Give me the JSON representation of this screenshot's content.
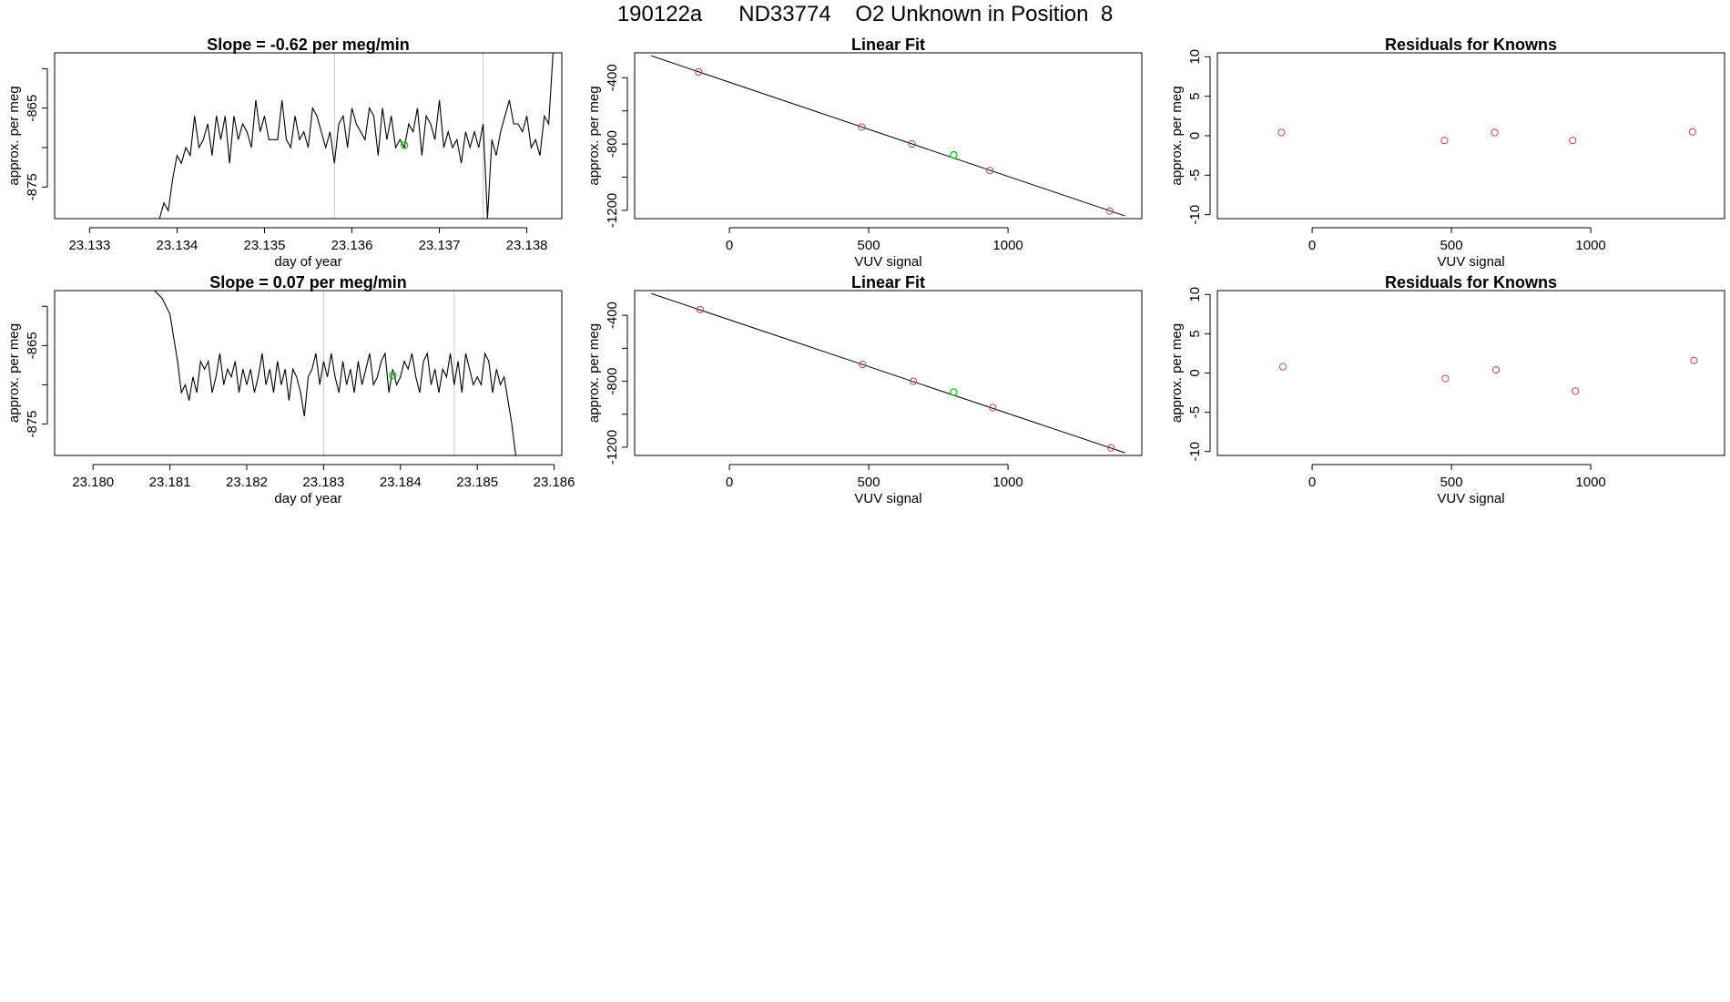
{
  "page": {
    "title": "190122a      ND33774    O2 Unknown in Position  8"
  },
  "chart_data": [
    {
      "type": "line",
      "title": "Slope =  -0.62  per meg/min",
      "xlabel": "day of year",
      "ylabel": "approx. per meg",
      "xlim": [
        23.1326,
        23.1384
      ],
      "ylim": [
        -879,
        -858
      ],
      "xticks": [
        {
          "v": 23.133,
          "label": "23.133"
        },
        {
          "v": 23.134,
          "label": "23.134"
        },
        {
          "v": 23.135,
          "label": "23.135"
        },
        {
          "v": 23.136,
          "label": "23.136"
        },
        {
          "v": 23.137,
          "label": "23.137"
        },
        {
          "v": 23.138,
          "label": "23.138"
        }
      ],
      "yticks": [
        {
          "v": -875,
          "label": "-875"
        },
        {
          "v": -865,
          "label": "-865"
        }
      ],
      "extra_yticks": [
        -860,
        -870
      ],
      "vlines": [
        23.1358,
        23.1375
      ],
      "highlight": {
        "x": 23.1366,
        "y": -869.7,
        "color": "#00cc00"
      },
      "series": [
        {
          "x": [
            23.1326,
            23.1338,
            23.13385,
            23.1339,
            23.13395,
            23.134,
            23.13405,
            23.1341,
            23.13415,
            23.1342,
            23.13425,
            23.1343,
            23.13435,
            23.1344,
            23.13445,
            23.1345,
            23.13455,
            23.1346,
            23.13465,
            23.1347,
            23.13475,
            23.1348,
            23.13485,
            23.1349,
            23.13495,
            23.135,
            23.13505,
            23.1351,
            23.13515,
            23.1352,
            23.13525,
            23.1353,
            23.13535,
            23.1354,
            23.13545,
            23.1355,
            23.13555,
            23.1356,
            23.13565,
            23.1357,
            23.13575,
            23.1358,
            23.13585,
            23.1359,
            23.13595,
            23.136,
            23.13605,
            23.1361,
            23.13615,
            23.1362,
            23.13625,
            23.1363,
            23.13635,
            23.1364,
            23.13645,
            23.1365,
            23.13655,
            23.1366,
            23.13665,
            23.1367,
            23.13675,
            23.1368,
            23.13685,
            23.1369,
            23.13695,
            23.137,
            23.13705,
            23.1371,
            23.13715,
            23.1372,
            23.13725,
            23.1373,
            23.13735,
            23.1374,
            23.13745,
            23.1375,
            23.13755,
            23.1376,
            23.13765,
            23.1377,
            23.13775,
            23.1378,
            23.13785,
            23.1379,
            23.13795,
            23.138,
            23.13805,
            23.1381,
            23.13815,
            23.1382,
            23.13825,
            23.1383,
            23.13835
          ],
          "y": [
            -879,
            -879,
            -877,
            -878,
            -874,
            -871,
            -872,
            -870,
            -871,
            -866,
            -870,
            -869,
            -867,
            -871,
            -866,
            -869,
            -866,
            -872,
            -866,
            -869,
            -867,
            -868,
            -870,
            -864,
            -868,
            -866,
            -869,
            -869,
            -869,
            -864,
            -869,
            -870,
            -866,
            -869,
            -868,
            -870,
            -865,
            -866,
            -868,
            -870,
            -868,
            -872,
            -867,
            -866,
            -870,
            -865,
            -867,
            -868,
            -869,
            -865,
            -866,
            -871,
            -865,
            -869,
            -866,
            -870,
            -869,
            -870,
            -867,
            -868,
            -865,
            -871,
            -866,
            -867,
            -869,
            -864,
            -870,
            -868,
            -870,
            -869,
            -872,
            -868,
            -870,
            -868,
            -870,
            -867,
            -879,
            -869,
            -871,
            -868,
            -866,
            -864,
            -867,
            -867,
            -868,
            -866,
            -870,
            -869,
            -871,
            -866,
            -867,
            -858,
            -855
          ]
        }
      ]
    },
    {
      "type": "scatter",
      "title": "Linear Fit",
      "xlabel": "VUV signal",
      "ylabel": "approx. per meg",
      "xlim": [
        -340,
        1480
      ],
      "ylim": [
        -1250,
        -250
      ],
      "xticks": [
        {
          "v": 0,
          "label": "0"
        },
        {
          "v": 500,
          "label": "500"
        },
        {
          "v": 1000,
          "label": "1000"
        }
      ],
      "yticks": [
        {
          "v": -1200,
          "label": "-1200"
        },
        {
          "v": -800,
          "label": "-800"
        },
        {
          "v": -400,
          "label": "-400"
        }
      ],
      "extra_yticks": [
        -1000,
        -600
      ],
      "fit_line": {
        "x": [
          -280,
          1420
        ],
        "y": [
          -268,
          -1234
        ]
      },
      "points": {
        "x": [
          -110,
          475,
          655,
          935,
          1365
        ],
        "y": [
          -365,
          -698,
          -800,
          -960,
          -1204
        ]
      },
      "highlight": {
        "x": 805,
        "y": -866,
        "color": "#00cc00"
      },
      "point_color": "#cc4444"
    },
    {
      "type": "scatter",
      "title": "Residuals for Knowns",
      "xlabel": "VUV signal",
      "ylabel": "approx. per meg",
      "xlim": [
        -340,
        1480
      ],
      "ylim": [
        -10.5,
        10.5
      ],
      "xticks": [
        {
          "v": 0,
          "label": "0"
        },
        {
          "v": 500,
          "label": "500"
        },
        {
          "v": 1000,
          "label": "1000"
        }
      ],
      "yticks": [
        {
          "v": -10,
          "label": "-10"
        },
        {
          "v": -5,
          "label": "-5"
        },
        {
          "v": 0,
          "label": "0"
        },
        {
          "v": 5,
          "label": "5"
        },
        {
          "v": 10,
          "label": "10"
        }
      ],
      "points": {
        "x": [
          -110,
          475,
          655,
          935,
          1365
        ],
        "y": [
          0.4,
          -0.6,
          0.4,
          -0.6,
          0.5
        ]
      },
      "point_color": "#cc4444"
    },
    {
      "type": "line",
      "title": "Slope =  0.07  per meg/min",
      "xlabel": "day of year",
      "ylabel": "approx. per meg",
      "xlim": [
        23.1795,
        23.1861
      ],
      "ylim": [
        -879,
        -858
      ],
      "xticks": [
        {
          "v": 23.18,
          "label": "23.180"
        },
        {
          "v": 23.181,
          "label": "23.181"
        },
        {
          "v": 23.182,
          "label": "23.182"
        },
        {
          "v": 23.183,
          "label": "23.183"
        },
        {
          "v": 23.184,
          "label": "23.184"
        },
        {
          "v": 23.185,
          "label": "23.185"
        },
        {
          "v": 23.186,
          "label": "23.186"
        }
      ],
      "yticks": [
        {
          "v": -875,
          "label": "-875"
        },
        {
          "v": -865,
          "label": "-865"
        }
      ],
      "extra_yticks": [
        -860,
        -870
      ],
      "vlines": [
        23.183,
        23.1847
      ],
      "highlight": {
        "x": 23.1839,
        "y": -868.8,
        "color": "#00cc00"
      },
      "series": [
        {
          "x": [
            23.1808,
            23.1809,
            23.18095,
            23.181,
            23.18105,
            23.1811,
            23.18115,
            23.1812,
            23.18125,
            23.1813,
            23.18135,
            23.1814,
            23.18145,
            23.1815,
            23.18155,
            23.1816,
            23.18165,
            23.1817,
            23.18175,
            23.1818,
            23.18185,
            23.1819,
            23.18195,
            23.182,
            23.18205,
            23.1821,
            23.18215,
            23.1822,
            23.18225,
            23.1823,
            23.18235,
            23.1824,
            23.18245,
            23.1825,
            23.18255,
            23.1826,
            23.18265,
            23.1827,
            23.18275,
            23.1828,
            23.18285,
            23.1829,
            23.18295,
            23.183,
            23.18305,
            23.1831,
            23.18315,
            23.1832,
            23.18325,
            23.1833,
            23.18335,
            23.1834,
            23.18345,
            23.1835,
            23.18355,
            23.1836,
            23.18365,
            23.1837,
            23.18375,
            23.1838,
            23.18385,
            23.1839,
            23.18395,
            23.184,
            23.18405,
            23.1841,
            23.18415,
            23.1842,
            23.18425,
            23.1843,
            23.18435,
            23.1844,
            23.18445,
            23.1845,
            23.18455,
            23.1846,
            23.18465,
            23.1847,
            23.18475,
            23.1848,
            23.18485,
            23.1849,
            23.18495,
            23.185,
            23.18505,
            23.1851,
            23.18515,
            23.1852,
            23.18525,
            23.1853,
            23.18535,
            23.1854,
            23.18545,
            23.1855
          ],
          "y": [
            -858,
            -859,
            -860,
            -861,
            -864,
            -867,
            -871,
            -870,
            -872,
            -869,
            -871,
            -867,
            -868,
            -867,
            -871,
            -869,
            -866,
            -870,
            -868,
            -869,
            -867,
            -871,
            -868,
            -870,
            -868,
            -871,
            -869,
            -866,
            -870,
            -868,
            -871,
            -867,
            -870,
            -868,
            -872,
            -868,
            -869,
            -871,
            -874,
            -869,
            -868,
            -866,
            -870,
            -867,
            -869,
            -866,
            -869,
            -871,
            -867,
            -870,
            -868,
            -871,
            -867,
            -870,
            -868,
            -866,
            -870,
            -869,
            -867,
            -866,
            -871,
            -868,
            -870,
            -869,
            -867,
            -868,
            -866,
            -869,
            -871,
            -867,
            -866,
            -870,
            -868,
            -871,
            -868,
            -869,
            -866,
            -870,
            -867,
            -871,
            -866,
            -868,
            -870,
            -869,
            -870,
            -866,
            -867,
            -871,
            -868,
            -870,
            -869,
            -872,
            -875,
            -879
          ]
        }
      ]
    },
    {
      "type": "scatter",
      "title": "Linear Fit",
      "xlabel": "VUV signal",
      "ylabel": "approx. per meg",
      "xlim": [
        -340,
        1480
      ],
      "ylim": [
        -1250,
        -250
      ],
      "xticks": [
        {
          "v": 0,
          "label": "0"
        },
        {
          "v": 500,
          "label": "500"
        },
        {
          "v": 1000,
          "label": "1000"
        }
      ],
      "yticks": [
        {
          "v": -1200,
          "label": "-1200"
        },
        {
          "v": -800,
          "label": "-800"
        },
        {
          "v": -400,
          "label": "-400"
        }
      ],
      "extra_yticks": [
        -1000,
        -600
      ],
      "fit_line": {
        "x": [
          -280,
          1420
        ],
        "y": [
          -268,
          -1234
        ]
      },
      "points": {
        "x": [
          -105,
          478,
          660,
          945,
          1370
        ],
        "y": [
          -365,
          -698,
          -800,
          -960,
          -1204
        ]
      },
      "highlight": {
        "x": 805,
        "y": -866,
        "color": "#00cc00"
      },
      "point_color": "#cc4444"
    },
    {
      "type": "scatter",
      "title": "Residuals for Knowns",
      "xlabel": "VUV signal",
      "ylabel": "approx. per meg",
      "xlim": [
        -340,
        1480
      ],
      "ylim": [
        -10.5,
        10.5
      ],
      "xticks": [
        {
          "v": 0,
          "label": "0"
        },
        {
          "v": 500,
          "label": "500"
        },
        {
          "v": 1000,
          "label": "1000"
        }
      ],
      "yticks": [
        {
          "v": -10,
          "label": "-10"
        },
        {
          "v": -5,
          "label": "-5"
        },
        {
          "v": 0,
          "label": "0"
        },
        {
          "v": 5,
          "label": "5"
        },
        {
          "v": 10,
          "label": "10"
        }
      ],
      "points": {
        "x": [
          -105,
          478,
          660,
          945,
          1370
        ],
        "y": [
          0.8,
          -0.7,
          0.4,
          -2.3,
          1.6
        ]
      },
      "point_color": "#cc4444"
    }
  ]
}
